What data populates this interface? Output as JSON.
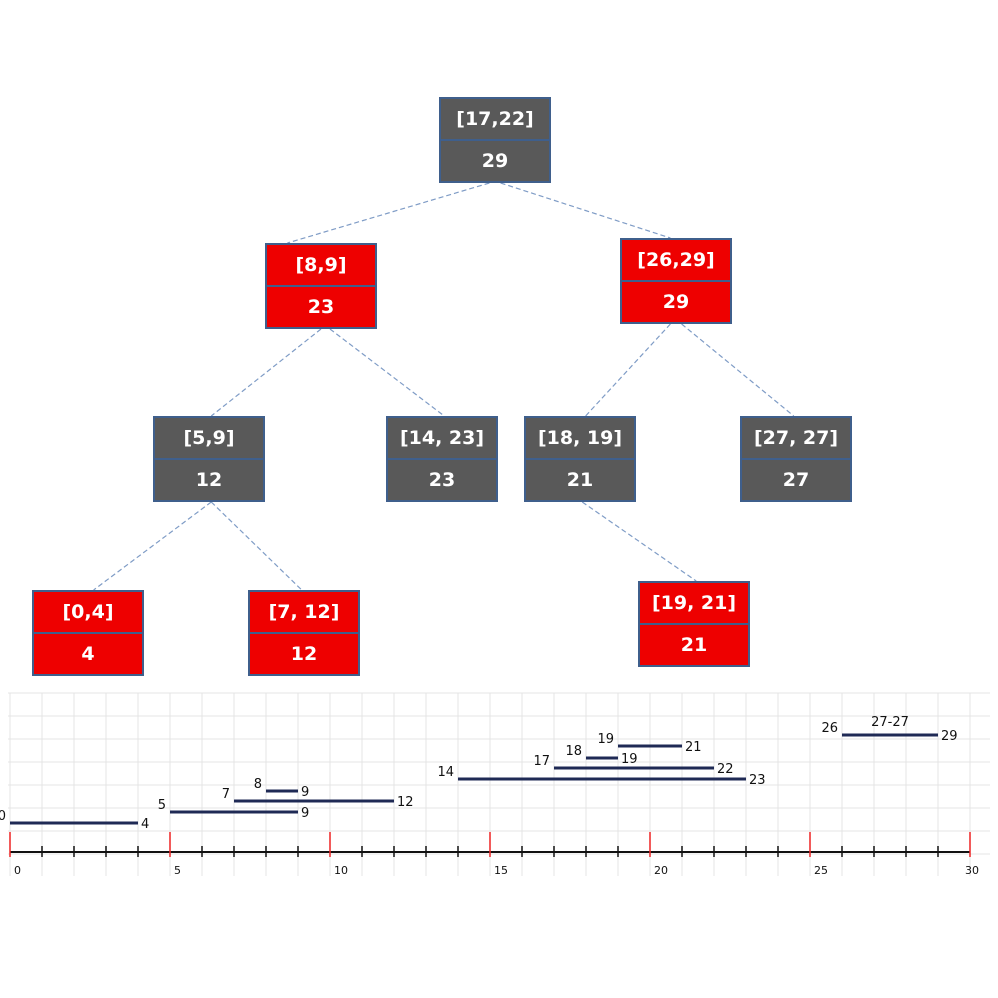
{
  "colors": {
    "black_node": "#595959",
    "red_node": "#ee0000",
    "edge": "#7f9cc6",
    "segment": "#1f2a55",
    "major_tick": "#ee2222"
  },
  "tree": {
    "nodes": [
      {
        "id": "n1722",
        "interval": "[17,22]",
        "max": "29",
        "color": "black"
      },
      {
        "id": "n89",
        "interval": "[8,9]",
        "max": "23",
        "color": "red"
      },
      {
        "id": "n2629",
        "interval": "[26,29]",
        "max": "29",
        "color": "red"
      },
      {
        "id": "n59",
        "interval": "[5,9]",
        "max": "12",
        "color": "black"
      },
      {
        "id": "n1423",
        "interval": "[14, 23]",
        "max": "23",
        "color": "black"
      },
      {
        "id": "n1819",
        "interval": "[18, 19]",
        "max": "21",
        "color": "black"
      },
      {
        "id": "n2727",
        "interval": "[27, 27]",
        "max": "27",
        "color": "black"
      },
      {
        "id": "n04",
        "interval": "[0,4]",
        "max": "4",
        "color": "red"
      },
      {
        "id": "n712",
        "interval": "[7, 12]",
        "max": "12",
        "color": "red"
      },
      {
        "id": "n1921",
        "interval": "[19, 21]",
        "max": "21",
        "color": "red"
      }
    ],
    "edges": [
      [
        "n1722",
        "n89"
      ],
      [
        "n1722",
        "n2629"
      ],
      [
        "n89",
        "n59"
      ],
      [
        "n89",
        "n1423"
      ],
      [
        "n2629",
        "n1819"
      ],
      [
        "n2629",
        "n2727"
      ],
      [
        "n59",
        "n04"
      ],
      [
        "n59",
        "n712"
      ],
      [
        "n1819",
        "n1921"
      ]
    ]
  },
  "number_line": {
    "min": 0,
    "max": 30,
    "tick_labels": [
      "0",
      "5",
      "10",
      "15",
      "20",
      "25",
      "30"
    ],
    "segments": [
      {
        "start": 0,
        "end": 4,
        "start_label": "0",
        "end_label": "4"
      },
      {
        "start": 5,
        "end": 9,
        "start_label": "5",
        "end_label": "9"
      },
      {
        "start": 7,
        "end": 12,
        "start_label": "7",
        "end_label": "12"
      },
      {
        "start": 8,
        "end": 9,
        "start_label": "8",
        "end_label": "9"
      },
      {
        "start": 14,
        "end": 23,
        "start_label": "14",
        "end_label": "23"
      },
      {
        "start": 17,
        "end": 22,
        "start_label": "17",
        "end_label": "22"
      },
      {
        "start": 18,
        "end": 19,
        "start_label": "18",
        "end_label": "19"
      },
      {
        "start": 19,
        "end": 21,
        "start_label": "19",
        "end_label": "21"
      },
      {
        "start": 26,
        "end": 29,
        "start_label": "26",
        "end_label": "29"
      }
    ],
    "point_label": "27-27"
  }
}
